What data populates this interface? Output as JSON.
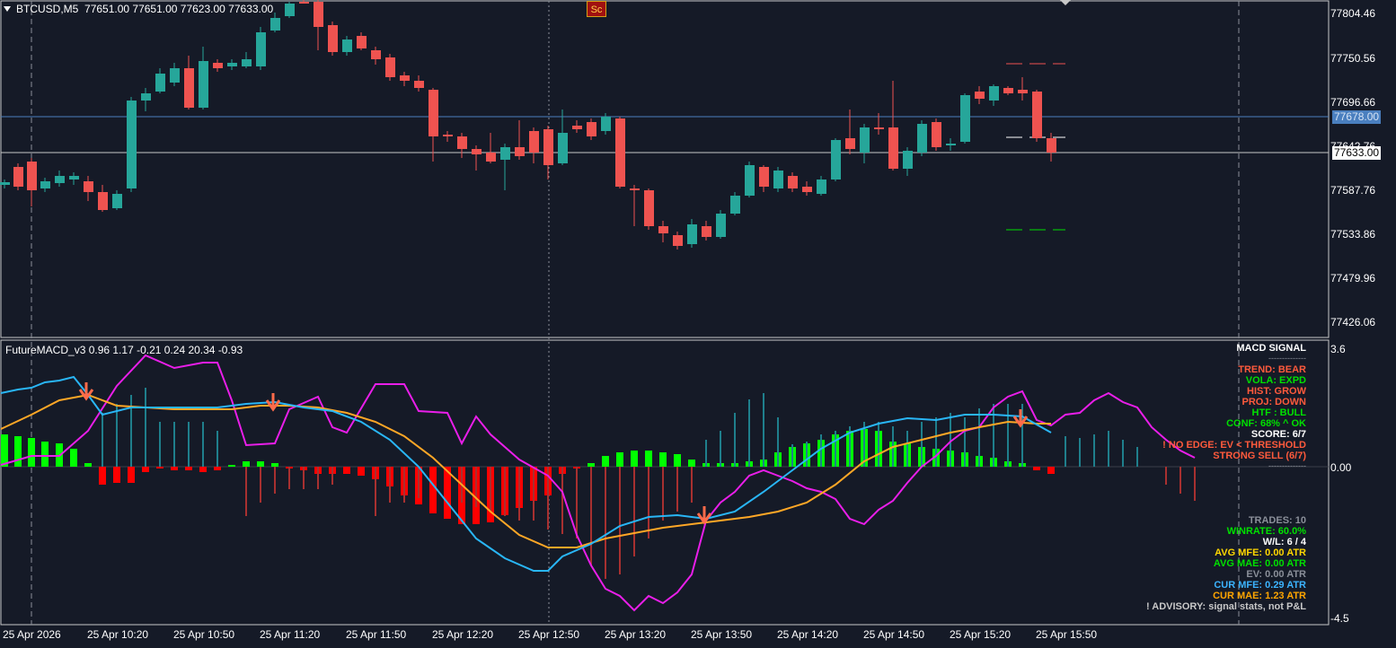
{
  "main_chart": {
    "symbol_label": "BTCUSD,M5",
    "ohlc_label": "77651.00 77651.00 77623.00 77633.00",
    "script_button": "Sc",
    "price_axis": [
      "77804.46",
      "77750.56",
      "77696.66",
      "77642.76",
      "77587.76",
      "77533.86",
      "77479.96",
      "77426.06"
    ],
    "price_tags": [
      {
        "value": "77678.00",
        "bg": "#4a7fbf",
        "fg": "#d6e4f5"
      },
      {
        "value": "77633.00",
        "bg": "#ffffff",
        "fg": "#000000"
      }
    ],
    "colors": {
      "bull": "#26a69a",
      "bear": "#ef5350",
      "background": "#151a27"
    }
  },
  "indicator": {
    "title": "FutureMACD_v3 0.96 1.17 -0.21 0.24 20.34 -0.93",
    "axis": [
      "3.6",
      "0.00",
      "-4.5"
    ],
    "signal_panel": {
      "header": "MACD SIGNAL",
      "divider": "--------------",
      "rows": [
        {
          "text": "TREND:  BEAR",
          "color": "#ff5a3c"
        },
        {
          "text": "VOLA:  EXPD",
          "color": "#00e000"
        },
        {
          "text": "HIST:  GROW",
          "color": "#ff5a3c"
        },
        {
          "text": "PROJ:  DOWN",
          "color": "#ff5a3c"
        },
        {
          "text": "HTF :  BULL",
          "color": "#00e000"
        },
        {
          "text": "CONF: 68% ^ OK",
          "color": "#00e000"
        },
        {
          "text": "SCORE: 6/7",
          "color": "#ffffff"
        },
        {
          "text": "! NO EDGE: EV < THRESHOLD",
          "color": "#ff5a3c"
        },
        {
          "text": "STRONG SELL (6/7)",
          "color": "#ff5a3c"
        }
      ],
      "divider2": "--------------"
    },
    "stats_panel": {
      "rows": [
        {
          "text": "TRADES: 10",
          "color": "#8a8f99"
        },
        {
          "text": "WINRATE: 60.0%",
          "color": "#00e000"
        },
        {
          "text": "W/L: 6 / 4",
          "color": "#ffffff"
        },
        {
          "text": "AVG MFE: 0.00 ATR",
          "color": "#ffd700"
        },
        {
          "text": "AVG MAE: 0.00 ATR",
          "color": "#00e000"
        },
        {
          "text": "EV:  0.00 ATR",
          "color": "#8a8f99"
        },
        {
          "text": "CUR MFE: 0.29 ATR",
          "color": "#3cb4ff"
        },
        {
          "text": "CUR MAE: 1.23 ATR",
          "color": "#ffa500"
        },
        {
          "text": "! ADVISORY: signal stats, not P&L",
          "color": "#c8c8c8"
        }
      ]
    },
    "colors": {
      "macd": "#29b6f6",
      "signal": "#ffa726",
      "projection": "#e91ee9",
      "hist_up": "#00ff00",
      "hist_down": "#ff0000"
    }
  },
  "time_axis": [
    "25 Apr 2026",
    "25 Apr 10:20",
    "25 Apr 10:50",
    "25 Apr 11:20",
    "25 Apr 11:50",
    "25 Apr 12:20",
    "25 Apr 12:50",
    "25 Apr 13:20",
    "25 Apr 13:50",
    "25 Apr 14:20",
    "25 Apr 14:50",
    "25 Apr 15:20",
    "25 Apr 15:50"
  ]
}
